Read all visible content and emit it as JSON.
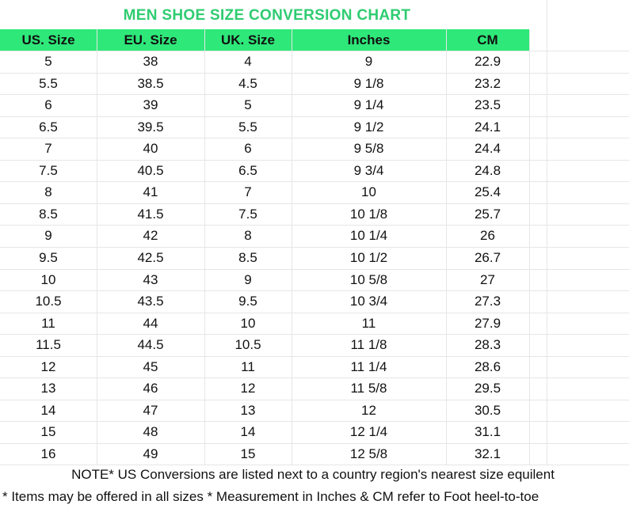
{
  "title": "MEN SHOE SIZE CONVERSION CHART",
  "table": {
    "header": [
      "US. Size",
      "EU. Size",
      "UK. Size",
      "Inches",
      "CM"
    ],
    "rows": [
      [
        "5",
        "38",
        "4",
        "9",
        "22.9"
      ],
      [
        "5.5",
        "38.5",
        "4.5",
        "9 1/8",
        "23.2"
      ],
      [
        "6",
        "39",
        "5",
        "9 1/4",
        "23.5"
      ],
      [
        "6.5",
        "39.5",
        "5.5",
        "9 1/2",
        "24.1"
      ],
      [
        "7",
        "40",
        "6",
        "9 5/8",
        "24.4"
      ],
      [
        "7.5",
        "40.5",
        "6.5",
        "9 3/4",
        "24.8"
      ],
      [
        "8",
        "41",
        "7",
        "10",
        "25.4"
      ],
      [
        "8.5",
        "41.5",
        "7.5",
        "10 1/8",
        "25.7"
      ],
      [
        "9",
        "42",
        "8",
        "10 1/4",
        "26"
      ],
      [
        "9.5",
        "42.5",
        "8.5",
        "10 1/2",
        "26.7"
      ],
      [
        "10",
        "43",
        "9",
        "10 5/8",
        "27"
      ],
      [
        "10.5",
        "43.5",
        "9.5",
        "10 3/4",
        "27.3"
      ],
      [
        "11",
        "44",
        "10",
        "11",
        "27.9"
      ],
      [
        "11.5",
        "44.5",
        "10.5",
        "11 1/8",
        "28.3"
      ],
      [
        "12",
        "45",
        "11",
        "11 1/4",
        "28.6"
      ],
      [
        "13",
        "46",
        "12",
        "11 5/8",
        "29.5"
      ],
      [
        "14",
        "47",
        "13",
        "12",
        "30.5"
      ],
      [
        "15",
        "48",
        "14",
        "12 1/4",
        "31.1"
      ],
      [
        "16",
        "49",
        "15",
        "12 5/8",
        "32.1"
      ]
    ]
  },
  "notes": [
    "NOTE* US Conversions are listed next to a country region's nearest size equilent",
    "* Items may be offered in all sizes * Measurement in Inches & CM refer to Foot heel-to-toe"
  ]
}
